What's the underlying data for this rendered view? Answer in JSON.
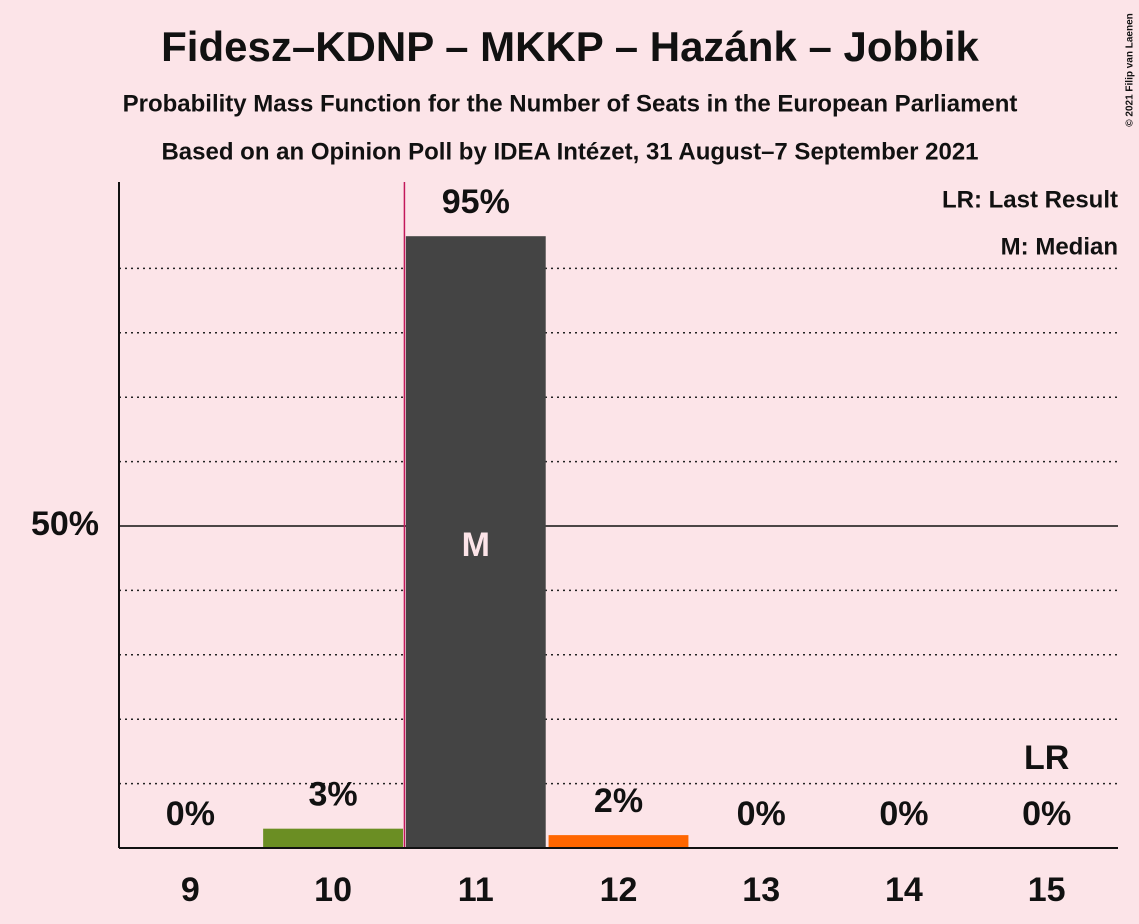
{
  "chart_data": {
    "type": "bar",
    "title": "Fidesz–KDNP – MKKP – Hazánk – Jobbik",
    "subtitle": "Probability Mass Function for the Number of Seats in the European Parliament",
    "subtitle2": "Based on an Opinion Poll by IDEA Intézet, 31 August–7 September 2021",
    "copyright": "© 2021 Filip van Laenen",
    "categories": [
      "9",
      "10",
      "11",
      "12",
      "13",
      "14",
      "15"
    ],
    "values": [
      0,
      3,
      95,
      2,
      0,
      0,
      0
    ],
    "value_labels": [
      "0%",
      "3%",
      "95%",
      "2%",
      "0%",
      "0%",
      "0%"
    ],
    "colors": [
      "#444444",
      "#6b8e23",
      "#444444",
      "#ff6600",
      "#444444",
      "#444444",
      "#444444"
    ],
    "ylim": [
      0,
      100
    ],
    "yticks": [
      {
        "value": 50,
        "label": "50%"
      }
    ],
    "minor_yticks": [
      10,
      20,
      30,
      40,
      60,
      70,
      80,
      90
    ],
    "grid": true,
    "median": "11",
    "median_marker": "M",
    "median_color": "#c2185b",
    "last_result": "15",
    "last_result_marker": "LR",
    "legend": [
      "LR: Last Result",
      "M: Median"
    ]
  }
}
